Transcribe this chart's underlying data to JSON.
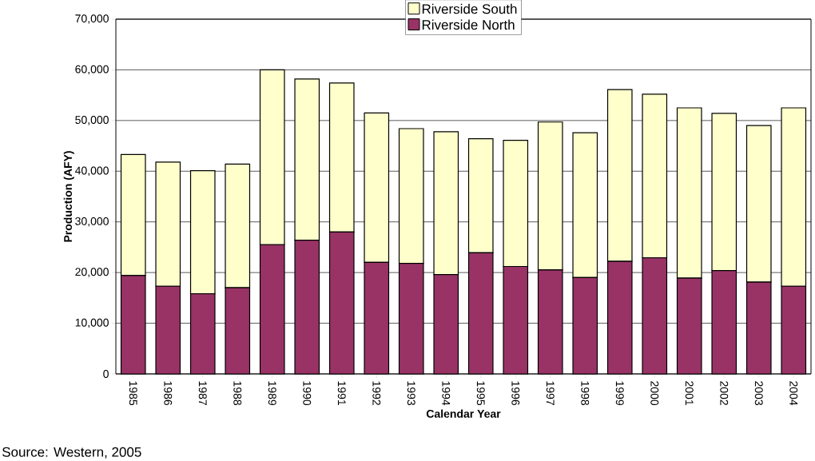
{
  "chart_data": {
    "type": "bar",
    "stacked": true,
    "xlabel": "Calendar Year",
    "ylabel": "Production (AFY)",
    "categories": [
      "1985",
      "1986",
      "1987",
      "1988",
      "1989",
      "1990",
      "1991",
      "1992",
      "1993",
      "1994",
      "1995",
      "1996",
      "1997",
      "1998",
      "1999",
      "2000",
      "2001",
      "2002",
      "2003",
      "2004"
    ],
    "series": [
      {
        "name": "Riverside North",
        "color": "#993366",
        "values": [
          19400,
          17300,
          15800,
          17000,
          25500,
          26400,
          28000,
          22000,
          21800,
          19600,
          23900,
          21200,
          20500,
          19000,
          22200,
          22900,
          18900,
          20400,
          18100,
          17300
        ]
      },
      {
        "name": "Riverside South",
        "color": "#ffffcc",
        "values": [
          23900,
          24500,
          24300,
          24400,
          34500,
          31800,
          29400,
          29500,
          26600,
          28200,
          22500,
          24900,
          29200,
          28600,
          33900,
          32300,
          33600,
          31000,
          30900,
          35200
        ]
      }
    ],
    "ylim": [
      0,
      70000
    ],
    "yticks": [
      0,
      {
        "value": 10000,
        "label": "10,000"
      },
      {
        "value": 20000,
        "label": "20,000"
      },
      {
        "value": 30000,
        "label": "30,000"
      },
      {
        "value": 40000,
        "label": "40,000"
      },
      {
        "value": 50000,
        "label": "50,000"
      },
      {
        "value": 60000,
        "label": "60,000"
      },
      {
        "value": 70000,
        "label": "70,000"
      }
    ],
    "grid": "y",
    "legend": "top",
    "annotations": [
      "Source:  Western, 2005"
    ]
  }
}
